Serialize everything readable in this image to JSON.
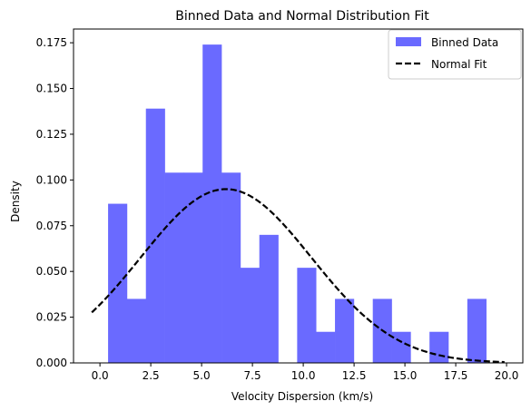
{
  "chart_data": {
    "type": "bar",
    "title": "Binned Data and Normal Distribution Fit",
    "xlabel": "Velocity Dispersion (km/s)",
    "ylabel": "Density",
    "xlim": [
      -1.3,
      20.8
    ],
    "ylim": [
      0,
      0.1825
    ],
    "x_ticks": [
      0.0,
      2.5,
      5.0,
      7.5,
      10.0,
      12.5,
      15.0,
      17.5,
      20.0
    ],
    "x_tick_labels": [
      "0.0",
      "2.5",
      "5.0",
      "7.5",
      "10.0",
      "12.5",
      "15.0",
      "17.5",
      "20.0"
    ],
    "y_ticks": [
      0.0,
      0.025,
      0.05,
      0.075,
      0.1,
      0.125,
      0.15,
      0.175
    ],
    "y_tick_labels": [
      "0.000",
      "0.025",
      "0.050",
      "0.075",
      "0.100",
      "0.125",
      "0.150",
      "0.175"
    ],
    "grid": false,
    "legend_position": "top-right",
    "series": [
      {
        "name": "Binned Data",
        "type": "histogram",
        "color": "#6a6aff",
        "bin_edges": [
          0.4,
          1.33,
          2.26,
          3.19,
          4.12,
          5.05,
          5.98,
          6.91,
          7.84,
          8.77,
          9.7,
          10.63,
          11.56,
          12.49,
          13.42,
          14.35,
          15.28,
          16.21,
          17.14,
          18.07,
          19.0
        ],
        "values": [
          0.087,
          0.035,
          0.139,
          0.104,
          0.104,
          0.174,
          0.104,
          0.052,
          0.07,
          0.0,
          0.052,
          0.017,
          0.035,
          0.0,
          0.035,
          0.017,
          0.0,
          0.017,
          0.0,
          0.035
        ]
      },
      {
        "name": "Normal Fit",
        "type": "line",
        "style": "dashed",
        "color": "#000000",
        "mean": 6.2,
        "std": 4.2,
        "x_range": [
          -0.4,
          19.9
        ]
      }
    ]
  }
}
